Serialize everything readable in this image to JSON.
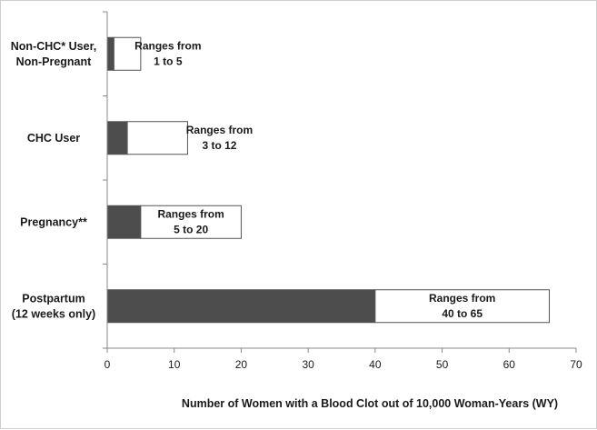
{
  "chart_data": {
    "type": "bar",
    "orientation": "horizontal",
    "stacked": true,
    "categories": [
      [
        "Non-CHC* User,",
        "Non-Pregnant"
      ],
      [
        "CHC User"
      ],
      [
        "Pregnancy**"
      ],
      [
        "Postpartum",
        "(12 weeks only)"
      ]
    ],
    "series": [
      {
        "values": [
          1,
          3,
          5,
          40
        ],
        "color": "#4d4d4d"
      },
      {
        "values": [
          4,
          9,
          15,
          26
        ],
        "color": "#ffffff"
      }
    ],
    "range_labels": [
      [
        "Ranges from",
        "1 to 5"
      ],
      [
        "Ranges from",
        "3 to 12"
      ],
      [
        "Ranges from",
        "5 to 20"
      ],
      [
        "Ranges from",
        "40 to 65"
      ]
    ],
    "xlim": [
      0,
      70
    ],
    "xticks": [
      0,
      10,
      20,
      30,
      40,
      50,
      60,
      70
    ],
    "xlabel": "Number of Women with a Blood Clot out of 10,000  Woman-Years (WY)",
    "ylabel": "",
    "title": "",
    "grid": false,
    "legend": "none"
  }
}
